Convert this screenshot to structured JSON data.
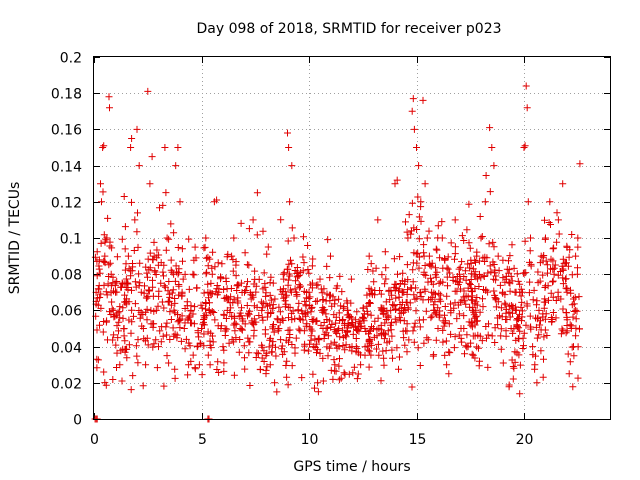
{
  "colors": {
    "series": "#e00000"
  },
  "chart_data": {
    "type": "scatter",
    "title": "Day 098 of 2018, SRMTID for receiver p023",
    "xlabel": "GPS time / hours",
    "ylabel": "SRMTID / TECUs",
    "xlim": [
      0,
      24
    ],
    "ylim": [
      0,
      0.2
    ],
    "grid": true,
    "x_ticks": [
      0,
      5,
      10,
      15,
      20
    ],
    "x_tick_labels": [
      "0",
      "5",
      "10",
      "15",
      "20"
    ],
    "y_ticks": [
      0,
      0.02,
      0.04,
      0.06,
      0.08,
      0.1,
      0.12,
      0.14,
      0.16,
      0.18,
      0.2
    ],
    "y_tick_labels": [
      "0",
      "0.02",
      "0.04",
      "0.06",
      "0.08",
      "0.1",
      "0.12",
      "0.14",
      "0.16",
      "0.18",
      "0.2"
    ],
    "marker": "plus",
    "series": [
      {
        "name": "SRMTID",
        "points": [
          [
            0.05,
            0.0
          ],
          [
            0.1,
            0.0
          ],
          [
            0.15,
            0.0
          ],
          [
            5.3,
            0.0
          ],
          [
            5.35,
            0.0
          ],
          [
            0.1,
            0.065
          ],
          [
            0.2,
            0.072
          ],
          [
            0.3,
            0.13
          ],
          [
            0.35,
            0.12
          ],
          [
            0.4,
            0.15
          ],
          [
            0.45,
            0.151
          ],
          [
            0.5,
            0.09
          ],
          [
            0.55,
            0.099
          ],
          [
            0.6,
            0.1
          ],
          [
            0.7,
            0.178
          ],
          [
            0.72,
            0.172
          ],
          [
            0.8,
            0.08
          ],
          [
            0.9,
            0.06
          ],
          [
            1.0,
            0.07
          ],
          [
            1.1,
            0.045
          ],
          [
            1.2,
            0.03
          ],
          [
            1.3,
            0.021
          ],
          [
            1.4,
            0.05
          ],
          [
            1.5,
            0.065
          ],
          [
            1.6,
            0.09
          ],
          [
            1.7,
            0.15
          ],
          [
            1.75,
            0.155
          ],
          [
            1.8,
            0.024
          ],
          [
            1.9,
            0.11
          ],
          [
            2.0,
            0.16
          ],
          [
            2.1,
            0.14
          ],
          [
            2.2,
            0.07
          ],
          [
            2.3,
            0.05
          ],
          [
            2.4,
            0.03
          ],
          [
            2.5,
            0.181
          ],
          [
            2.6,
            0.13
          ],
          [
            2.7,
            0.145
          ],
          [
            2.8,
            0.09
          ],
          [
            2.9,
            0.06
          ],
          [
            3.0,
            0.04
          ],
          [
            3.1,
            0.075
          ],
          [
            3.2,
            0.118
          ],
          [
            3.3,
            0.15
          ],
          [
            3.4,
            0.1
          ],
          [
            3.5,
            0.065
          ],
          [
            3.6,
            0.055
          ],
          [
            3.7,
            0.08
          ],
          [
            3.8,
            0.14
          ],
          [
            3.9,
            0.15
          ],
          [
            4.0,
            0.12
          ],
          [
            4.1,
            0.07
          ],
          [
            4.2,
            0.05
          ],
          [
            4.3,
            0.044
          ],
          [
            4.4,
            0.03
          ],
          [
            4.5,
            0.06
          ],
          [
            4.6,
            0.08
          ],
          [
            4.7,
            0.095
          ],
          [
            4.8,
            0.04
          ],
          [
            4.9,
            0.03
          ],
          [
            5.0,
            0.05
          ],
          [
            5.1,
            0.055
          ],
          [
            5.2,
            0.1
          ],
          [
            5.3,
            0.07
          ],
          [
            5.4,
            0.03
          ],
          [
            5.5,
            0.08
          ],
          [
            5.6,
            0.12
          ],
          [
            5.7,
            0.121
          ],
          [
            5.8,
            0.07
          ],
          [
            5.9,
            0.05
          ],
          [
            6.0,
            0.04
          ],
          [
            6.2,
            0.06
          ],
          [
            6.4,
            0.09
          ],
          [
            6.5,
            0.1
          ],
          [
            6.6,
            0.045
          ],
          [
            6.8,
            0.05
          ],
          [
            7.0,
            0.07
          ],
          [
            7.2,
            0.085
          ],
          [
            7.4,
            0.11
          ],
          [
            7.6,
            0.125
          ],
          [
            7.8,
            0.06
          ],
          [
            8.0,
            0.035
          ],
          [
            8.2,
            0.03
          ],
          [
            8.4,
            0.02
          ],
          [
            8.5,
            0.015
          ],
          [
            8.6,
            0.05
          ],
          [
            8.8,
            0.08
          ],
          [
            9.0,
            0.158
          ],
          [
            9.05,
            0.15
          ],
          [
            9.1,
            0.12
          ],
          [
            9.2,
            0.14
          ],
          [
            9.3,
            0.1
          ],
          [
            9.4,
            0.07
          ],
          [
            9.5,
            0.06
          ],
          [
            9.6,
            0.055
          ],
          [
            9.8,
            0.065
          ],
          [
            10.0,
            0.07
          ],
          [
            10.2,
            0.04
          ],
          [
            10.4,
            0.02
          ],
          [
            10.6,
            0.06
          ],
          [
            10.8,
            0.05
          ],
          [
            11.0,
            0.09
          ],
          [
            11.2,
            0.03
          ],
          [
            11.4,
            0.04
          ],
          [
            11.6,
            0.045
          ],
          [
            11.8,
            0.06
          ],
          [
            12.0,
            0.04
          ],
          [
            12.2,
            0.04
          ],
          [
            12.4,
            0.03
          ],
          [
            12.6,
            0.05
          ],
          [
            12.8,
            0.09
          ],
          [
            13.0,
            0.05
          ],
          [
            13.2,
            0.11
          ],
          [
            13.4,
            0.06
          ],
          [
            13.6,
            0.055
          ],
          [
            13.8,
            0.06
          ],
          [
            14.0,
            0.13
          ],
          [
            14.1,
            0.132
          ],
          [
            14.2,
            0.06
          ],
          [
            14.4,
            0.045
          ],
          [
            14.6,
            0.1
          ],
          [
            14.8,
            0.17
          ],
          [
            14.85,
            0.177
          ],
          [
            14.9,
            0.16
          ],
          [
            15.0,
            0.15
          ],
          [
            15.1,
            0.14
          ],
          [
            15.2,
            0.12
          ],
          [
            15.3,
            0.176
          ],
          [
            15.4,
            0.13
          ],
          [
            15.5,
            0.1
          ],
          [
            15.6,
            0.09
          ],
          [
            15.7,
            0.07
          ],
          [
            15.8,
            0.06
          ],
          [
            16.0,
            0.05
          ],
          [
            16.2,
            0.1
          ],
          [
            16.4,
            0.03
          ],
          [
            16.5,
            0.025
          ],
          [
            16.6,
            0.06
          ],
          [
            16.8,
            0.11
          ],
          [
            17.0,
            0.08
          ],
          [
            17.2,
            0.05
          ],
          [
            17.4,
            0.04
          ],
          [
            17.6,
            0.06
          ],
          [
            17.8,
            0.09
          ],
          [
            18.0,
            0.1
          ],
          [
            18.2,
            0.12
          ],
          [
            18.4,
            0.161
          ],
          [
            18.5,
            0.15
          ],
          [
            18.6,
            0.14
          ],
          [
            18.8,
            0.09
          ],
          [
            19.0,
            0.07
          ],
          [
            19.2,
            0.055
          ],
          [
            19.4,
            0.05
          ],
          [
            19.6,
            0.06
          ],
          [
            19.8,
            0.07
          ],
          [
            20.0,
            0.15
          ],
          [
            20.05,
            0.151
          ],
          [
            20.1,
            0.184
          ],
          [
            20.15,
            0.172
          ],
          [
            20.2,
            0.12
          ],
          [
            20.3,
            0.1
          ],
          [
            20.4,
            0.04
          ],
          [
            20.5,
            0.03
          ],
          [
            20.6,
            0.02
          ],
          [
            20.7,
            0.06
          ],
          [
            20.8,
            0.09
          ],
          [
            21.0,
            0.1
          ],
          [
            21.2,
            0.12
          ],
          [
            21.4,
            0.08
          ],
          [
            21.6,
            0.11
          ],
          [
            21.8,
            0.13
          ],
          [
            22.0,
            0.07
          ],
          [
            22.1,
            0.025
          ],
          [
            22.2,
            0.05
          ],
          [
            22.3,
            0.04
          ],
          [
            22.4,
            0.06
          ],
          [
            22.5,
            0.1
          ],
          [
            22.6,
            0.141
          ],
          [
            19.8,
            0.014
          ],
          [
            22.4,
            0.09
          ],
          [
            22.5,
            0.095
          ]
        ],
        "band": [
          {
            "t": 0.0,
            "c": 0.065,
            "s": 0.017
          },
          {
            "t": 0.5,
            "c": 0.07,
            "s": 0.02
          },
          {
            "t": 1.0,
            "c": 0.062,
            "s": 0.018
          },
          {
            "t": 1.5,
            "c": 0.063,
            "s": 0.02
          },
          {
            "t": 2.0,
            "c": 0.07,
            "s": 0.021
          },
          {
            "t": 2.5,
            "c": 0.068,
            "s": 0.02
          },
          {
            "t": 3.0,
            "c": 0.068,
            "s": 0.021
          },
          {
            "t": 3.5,
            "c": 0.066,
            "s": 0.02
          },
          {
            "t": 4.0,
            "c": 0.065,
            "s": 0.019
          },
          {
            "t": 4.5,
            "c": 0.055,
            "s": 0.016
          },
          {
            "t": 5.0,
            "c": 0.058,
            "s": 0.017
          },
          {
            "t": 5.5,
            "c": 0.062,
            "s": 0.019
          },
          {
            "t": 6.0,
            "c": 0.06,
            "s": 0.017
          },
          {
            "t": 6.5,
            "c": 0.062,
            "s": 0.018
          },
          {
            "t": 7.0,
            "c": 0.062,
            "s": 0.018
          },
          {
            "t": 7.5,
            "c": 0.06,
            "s": 0.017
          },
          {
            "t": 8.0,
            "c": 0.055,
            "s": 0.016
          },
          {
            "t": 8.5,
            "c": 0.052,
            "s": 0.017
          },
          {
            "t": 9.0,
            "c": 0.065,
            "s": 0.02
          },
          {
            "t": 9.5,
            "c": 0.065,
            "s": 0.018
          },
          {
            "t": 10.0,
            "c": 0.058,
            "s": 0.016
          },
          {
            "t": 10.5,
            "c": 0.053,
            "s": 0.015
          },
          {
            "t": 11.0,
            "c": 0.052,
            "s": 0.015
          },
          {
            "t": 11.5,
            "c": 0.05,
            "s": 0.014
          },
          {
            "t": 12.0,
            "c": 0.048,
            "s": 0.014
          },
          {
            "t": 12.5,
            "c": 0.05,
            "s": 0.014
          },
          {
            "t": 13.0,
            "c": 0.053,
            "s": 0.015
          },
          {
            "t": 13.5,
            "c": 0.055,
            "s": 0.015
          },
          {
            "t": 14.0,
            "c": 0.06,
            "s": 0.016
          },
          {
            "t": 14.5,
            "c": 0.07,
            "s": 0.02
          },
          {
            "t": 15.0,
            "c": 0.08,
            "s": 0.022
          },
          {
            "t": 15.5,
            "c": 0.07,
            "s": 0.02
          },
          {
            "t": 16.0,
            "c": 0.07,
            "s": 0.02
          },
          {
            "t": 16.5,
            "c": 0.065,
            "s": 0.018
          },
          {
            "t": 17.0,
            "c": 0.065,
            "s": 0.019
          },
          {
            "t": 17.5,
            "c": 0.067,
            "s": 0.019
          },
          {
            "t": 18.0,
            "c": 0.07,
            "s": 0.02
          },
          {
            "t": 18.5,
            "c": 0.075,
            "s": 0.022
          },
          {
            "t": 19.0,
            "c": 0.07,
            "s": 0.02
          },
          {
            "t": 19.5,
            "c": 0.062,
            "s": 0.018
          },
          {
            "t": 20.0,
            "c": 0.058,
            "s": 0.018
          },
          {
            "t": 20.5,
            "c": 0.055,
            "s": 0.017
          },
          {
            "t": 21.0,
            "c": 0.068,
            "s": 0.019
          },
          {
            "t": 21.5,
            "c": 0.075,
            "s": 0.02
          },
          {
            "t": 22.0,
            "c": 0.065,
            "s": 0.02
          },
          {
            "t": 22.6,
            "c": 0.06,
            "s": 0.02
          }
        ],
        "band_count": 1500,
        "band_seed": 98
      }
    ]
  }
}
